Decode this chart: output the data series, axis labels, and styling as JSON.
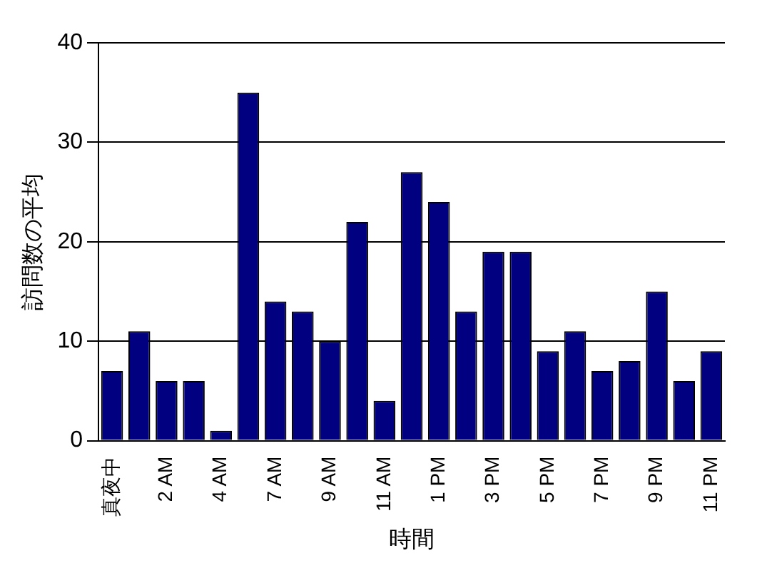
{
  "chart_data": {
    "type": "bar",
    "xlabel": "時間",
    "ylabel": "訪問数の平均",
    "categories": [
      "真夜中",
      null,
      "2 AM",
      null,
      "4 AM",
      null,
      "7 AM",
      null,
      "9 AM",
      null,
      "11 AM",
      null,
      "1 PM",
      null,
      "3 PM",
      null,
      "5 PM",
      null,
      "7 PM",
      null,
      "9 PM",
      null,
      "11 PM"
    ],
    "values": [
      7,
      11,
      6,
      6,
      1,
      35,
      14,
      13,
      10,
      22,
      4,
      27,
      24,
      13,
      19,
      19,
      9,
      11,
      7,
      8,
      15,
      6,
      9
    ],
    "color": "#000080",
    "ylim": [
      0,
      40
    ],
    "yticks": [
      0,
      10,
      20,
      30,
      40
    ],
    "grid": "y",
    "legend": false
  }
}
